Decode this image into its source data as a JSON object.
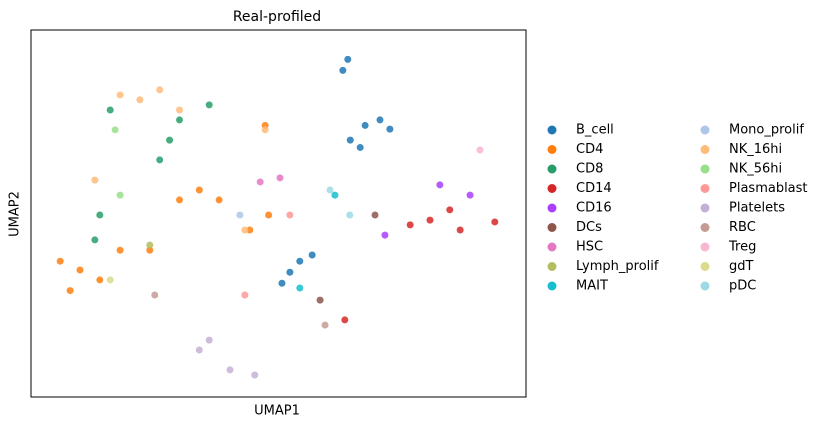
{
  "chart_data": {
    "type": "scatter",
    "title": "Real-profiled",
    "xlabel": "UMAP1",
    "ylabel": "UMAP2",
    "xlim": [
      0,
      100
    ],
    "ylim": [
      0,
      100
    ],
    "grid": false,
    "legend": "right",
    "series": [
      {
        "name": "B_cell",
        "color": "#1f77b4",
        "x": [
          64,
          63,
          67.5,
          70.5,
          64.5,
          72.5,
          66.5,
          54.3,
          56.8,
          52.3,
          50.7
        ],
        "y": [
          92,
          89,
          74,
          75.5,
          70,
          73,
          68,
          37,
          38.7,
          34,
          31
        ]
      },
      {
        "name": "CD4",
        "color": "#ff7f0e",
        "x": [
          5.9,
          9.9,
          13.9,
          7.9,
          18,
          24,
          34,
          30,
          38,
          47.3,
          44.2,
          48
        ],
        "y": [
          37,
          34.6,
          31.9,
          29,
          40,
          40,
          56.4,
          53.7,
          53.7,
          74,
          45.5,
          49.6
        ]
      },
      {
        "name": "CD8",
        "color": "#279e68",
        "x": [
          13.9,
          12.9,
          28,
          30,
          36,
          26,
          16
        ],
        "y": [
          49.6,
          42.8,
          70,
          75.5,
          79.6,
          64.6,
          78.2
        ]
      },
      {
        "name": "CD14",
        "color": "#d62728",
        "x": [
          80.6,
          76.6,
          84.6,
          86.7,
          93.7,
          63.4
        ],
        "y": [
          48.2,
          46.9,
          51,
          45.5,
          47.7,
          21
        ]
      },
      {
        "name": "CD16",
        "color": "#aa40fc",
        "x": [
          82.6,
          71.5,
          88.7
        ],
        "y": [
          57.8,
          44.1,
          55
        ]
      },
      {
        "name": "DCs",
        "color": "#8c564b",
        "x": [
          69.5,
          58.4
        ],
        "y": [
          49.6,
          26.4
        ]
      },
      {
        "name": "HSC",
        "color": "#e377c2",
        "x": [
          50.3,
          46.3
        ],
        "y": [
          59.7,
          58.6
        ]
      },
      {
        "name": "Lymph_prolif",
        "color": "#b5bd61",
        "x": [
          24
        ],
        "y": [
          41.4
        ]
      },
      {
        "name": "MAIT",
        "color": "#17becf",
        "x": [
          61.4,
          54.3
        ],
        "y": [
          55,
          29.7
        ]
      },
      {
        "name": "Mono_prolif",
        "color": "#aec7e8",
        "x": [
          42.2
        ],
        "y": [
          49.6
        ]
      },
      {
        "name": "NK_16hi",
        "color": "#ffbb78",
        "x": [
          22,
          18,
          26,
          12.9,
          30,
          43.2,
          47.3
        ],
        "y": [
          81,
          82.3,
          83.7,
          59.1,
          78.2,
          45.5,
          72.8
        ]
      },
      {
        "name": "NK_56hi",
        "color": "#98df8a",
        "x": [
          17,
          18
        ],
        "y": [
          72.8,
          55
        ]
      },
      {
        "name": "Plasmablast",
        "color": "#ff9896",
        "x": [
          43.2,
          52.3
        ],
        "y": [
          27.8,
          49.6
        ]
      },
      {
        "name": "Platelets",
        "color": "#c5b0d5",
        "x": [
          34,
          40.2,
          45.2,
          36
        ],
        "y": [
          12.8,
          7.4,
          6,
          15.5
        ]
      },
      {
        "name": "RBC",
        "color": "#c49c94",
        "x": [
          25,
          59.4
        ],
        "y": [
          27.8,
          19.6
        ]
      },
      {
        "name": "Treg",
        "color": "#f7b6d2",
        "x": [
          90.7
        ],
        "y": [
          67.3
        ]
      },
      {
        "name": "gdT",
        "color": "#dbdb8d",
        "x": [
          16
        ],
        "y": [
          31.9
        ]
      },
      {
        "name": "pDC",
        "color": "#9edae5",
        "x": [
          64.4,
          60.4
        ],
        "y": [
          49.6,
          56.4
        ]
      }
    ]
  }
}
